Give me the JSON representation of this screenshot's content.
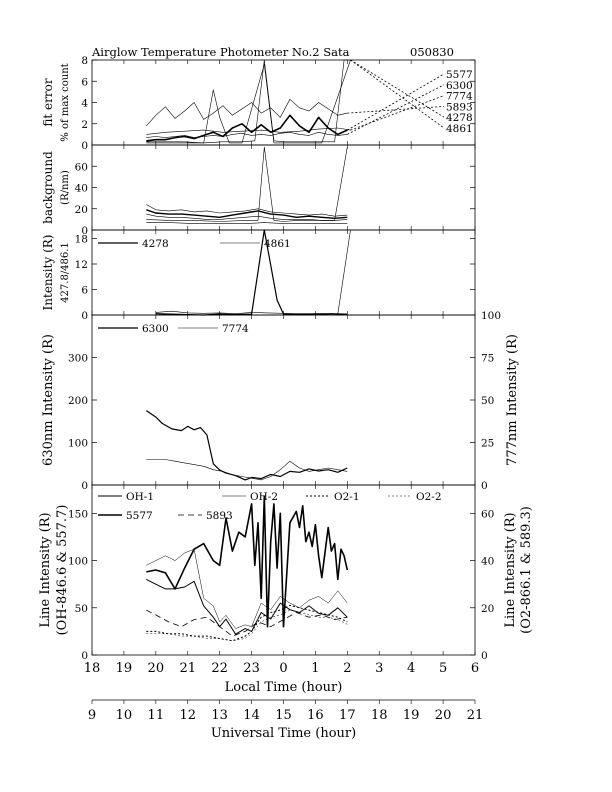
{
  "header": {
    "title": "Airglow Temperature Photometer No.2  Sata",
    "date": "050830"
  },
  "chart_data": [
    {
      "type": "line",
      "panel": "fit-error",
      "ylabel": [
        "fit error",
        "% of max count"
      ],
      "ylim": [
        0,
        8
      ],
      "yticks": [
        0,
        2,
        4,
        6,
        8
      ],
      "legend": [
        "5577",
        "6300",
        "7774",
        "5893",
        "4278",
        "4861"
      ],
      "series": [
        {
          "name": "5893",
          "x": [
            19.7,
            20.0,
            20.3,
            20.6,
            20.9,
            21.2,
            21.5,
            21.8,
            22.1,
            22.4,
            22.7,
            23.0,
            23.3,
            23.6,
            23.9,
            0.2,
            0.5,
            0.8,
            1.1,
            1.4,
            1.7,
            2.0
          ],
          "values": [
            1.8,
            2.8,
            3.6,
            2.5,
            3.2,
            4.0,
            2.4,
            3.0,
            3.7,
            2.8,
            3.4,
            4.0,
            3.0,
            3.5,
            2.6,
            4.3,
            3.5,
            3.2,
            4.0,
            3.4,
            2.8,
            3.0
          ]
        },
        {
          "name": "5577",
          "x": [
            19.7,
            20.0,
            20.3,
            20.6,
            20.9,
            21.2,
            21.5,
            21.8,
            22.1,
            22.4,
            22.7,
            23.0,
            23.3,
            23.6,
            23.9,
            0.2,
            0.5,
            0.8,
            1.1,
            1.4,
            1.7,
            2.0
          ],
          "values": [
            0.4,
            0.5,
            0.5,
            0.7,
            0.8,
            0.6,
            0.9,
            1.2,
            0.8,
            1.6,
            2.0,
            1.2,
            1.9,
            1.2,
            1.6,
            2.8,
            1.8,
            1.2,
            2.6,
            1.6,
            1.0,
            1.4
          ]
        },
        {
          "name": "6300",
          "x": [
            19.7,
            20.0,
            20.3,
            20.6,
            20.9,
            21.2,
            21.5,
            21.8,
            22.1,
            22.4,
            22.7,
            23.0,
            23.3,
            23.6,
            23.9,
            0.2,
            0.5,
            0.8,
            1.1,
            1.4,
            1.7,
            2.0
          ],
          "values": [
            0.7,
            0.8,
            0.7,
            0.8,
            0.9,
            0.7,
            0.8,
            0.9,
            0.8,
            1.0,
            1.1,
            0.9,
            1.0,
            0.9,
            1.1,
            1.2,
            1.0,
            0.9,
            1.2,
            1.0,
            0.9,
            1.0
          ]
        },
        {
          "name": "4278",
          "x": [
            19.7,
            20.3,
            20.9,
            21.5,
            22.1,
            22.7,
            23.1,
            23.4,
            23.7,
            24.0,
            0.6,
            1.2,
            1.6,
            1.9,
            2.1
          ],
          "values": [
            0.3,
            0.3,
            0.3,
            0.2,
            0.3,
            0.3,
            0.4,
            8.0,
            0.4,
            0.3,
            0.3,
            0.3,
            0.3,
            8.0,
            8.0
          ]
        },
        {
          "name": "4861",
          "x": [
            19.7,
            20.3,
            20.9,
            21.5,
            21.8,
            22.0,
            22.3,
            22.7,
            23.4,
            23.7,
            24.0,
            0.6,
            1.2,
            2.1
          ],
          "values": [
            0.2,
            0.2,
            0.2,
            0.2,
            5.2,
            2.6,
            0.2,
            0.2,
            7.6,
            0.2,
            0.2,
            0.2,
            0.2,
            8.0
          ]
        },
        {
          "name": "7774",
          "x": [
            19.7,
            20.3,
            20.9,
            21.5,
            22.1,
            22.7,
            23.3,
            23.9,
            0.5,
            1.1,
            1.7,
            2.1
          ],
          "values": [
            1.0,
            1.2,
            1.3,
            1.4,
            1.2,
            1.3,
            1.4,
            1.2,
            1.3,
            1.5,
            1.6,
            1.4
          ]
        }
      ]
    },
    {
      "type": "line",
      "panel": "background",
      "ylabel": [
        "background",
        "(R/nm)"
      ],
      "ylim": [
        0,
        80
      ],
      "yticks": [
        0,
        20,
        40,
        60
      ],
      "series": [
        {
          "x": [
            19.7,
            20.0,
            20.4,
            20.8,
            21.2,
            21.6,
            22.0,
            22.4,
            22.8,
            23.2,
            23.6,
            24.0,
            0.4,
            0.8,
            1.2,
            1.6,
            2.0
          ],
          "values": [
            24,
            19,
            18,
            19,
            17,
            18,
            16,
            17,
            18,
            20,
            17,
            16,
            15,
            14,
            15,
            13,
            14
          ]
        },
        {
          "x": [
            19.7,
            20.0,
            20.4,
            20.8,
            21.2,
            21.6,
            22.0,
            22.4,
            22.8,
            23.2,
            23.6,
            24.0,
            0.4,
            0.8,
            1.2,
            1.6,
            2.0
          ],
          "values": [
            19,
            16,
            15,
            15,
            14,
            13,
            12,
            14,
            16,
            18,
            15,
            14,
            12,
            13,
            12,
            11,
            12
          ]
        },
        {
          "x": [
            19.7,
            20.0,
            20.4,
            20.8,
            21.2,
            21.6,
            22.0,
            22.4,
            22.8,
            23.2,
            23.6,
            24.0,
            0.4,
            0.8,
            1.2,
            1.6,
            2.0
          ],
          "values": [
            15,
            13,
            12,
            12,
            11,
            10,
            10,
            11,
            12,
            13,
            11,
            10,
            10,
            10,
            9,
            9,
            10
          ]
        },
        {
          "x": [
            19.7,
            20.4,
            21.2,
            22.0,
            22.8,
            23.2,
            23.4,
            23.7,
            24.0,
            0.4,
            0.8,
            1.2,
            1.6,
            2.0
          ],
          "values": [
            10,
            9,
            9,
            8,
            9,
            9,
            78,
            9,
            8,
            9,
            9,
            9,
            9,
            78
          ]
        },
        {
          "x": [
            19.7,
            20.4,
            21.2,
            22.0,
            22.8,
            23.4,
            24.0,
            0.4,
            0.8,
            1.2,
            1.6,
            2.0
          ],
          "values": [
            7,
            7,
            6,
            6,
            6,
            7,
            6,
            6,
            6,
            6,
            6,
            6
          ]
        }
      ]
    },
    {
      "type": "line",
      "panel": "blue-lines",
      "ylabel": [
        "Intensity (R)",
        "427.8/486.1"
      ],
      "ylim": [
        0,
        20
      ],
      "yticks": [
        0,
        6,
        12,
        18
      ],
      "series": [
        {
          "name": "4278",
          "x": [
            20.0,
            20.5,
            21.0,
            21.5,
            22.0,
            22.5,
            23.0,
            23.4,
            23.8,
            24.0,
            0.5,
            1.0,
            1.5,
            1.9,
            2.0
          ],
          "values": [
            0.3,
            0.2,
            0.1,
            -0.3,
            0.2,
            0.1,
            0.2,
            20.0,
            3.5,
            0.2,
            0.1,
            0.1,
            0.3,
            0.2,
            0.2
          ]
        },
        {
          "name": "4861",
          "x": [
            20.0,
            20.5,
            21.0,
            21.5,
            22.0,
            22.5,
            23.0,
            23.5,
            24.0,
            0.5,
            1.0,
            1.5,
            1.7,
            2.1
          ],
          "values": [
            0.6,
            0.9,
            0.5,
            0.4,
            0.5,
            0.3,
            0.6,
            0.5,
            0.4,
            0.3,
            0.4,
            0.3,
            0.2,
            20.0
          ]
        }
      ]
    },
    {
      "type": "line",
      "panel": "red-lines",
      "ylabel": "630nm Intensity (R)",
      "ylim": [
        0,
        400
      ],
      "yticks": [
        0,
        100,
        200,
        300
      ],
      "y2label": "777nm Intensity (R)",
      "y2lim": [
        0,
        100
      ],
      "y2ticks": [
        0,
        25,
        50,
        75,
        100
      ],
      "series": [
        {
          "name": "6300",
          "x": [
            19.7,
            20.0,
            20.2,
            20.5,
            20.8,
            21.0,
            21.2,
            21.4,
            21.6,
            21.8,
            22.0,
            22.2,
            22.5,
            22.8,
            23.0,
            23.3,
            23.6,
            23.9,
            0.2,
            0.5,
            0.8,
            1.1,
            1.4,
            1.7,
            2.0
          ],
          "values": [
            175,
            160,
            145,
            132,
            128,
            138,
            130,
            135,
            118,
            50,
            35,
            28,
            22,
            12,
            18,
            15,
            25,
            20,
            32,
            30,
            38,
            33,
            36,
            30,
            40
          ]
        },
        {
          "name": "7774",
          "x": [
            19.7,
            20.0,
            20.3,
            20.6,
            20.9,
            21.2,
            21.5,
            21.8,
            22.1,
            22.4,
            22.7,
            23.0,
            23.3,
            23.6,
            23.9,
            0.2,
            0.5,
            0.8,
            1.1,
            1.4,
            1.7,
            2.0
          ],
          "values": [
            15,
            15,
            15,
            14,
            13,
            12,
            11,
            9,
            8,
            6,
            5,
            4,
            3,
            5,
            9,
            14,
            10,
            8,
            9,
            10,
            9,
            8
          ]
        }
      ]
    },
    {
      "type": "line",
      "panel": "oh-o2",
      "ylabel": [
        "Line Intensity (R)",
        "(OH-846.6 & 557.7)"
      ],
      "ylim": [
        0,
        180
      ],
      "yticks": [
        0,
        50,
        100,
        150
      ],
      "y2label": [
        "Line Intensity (R)",
        "(O2-866.1 & 589.3)"
      ],
      "y2lim": [
        0,
        72
      ],
      "y2ticks": [
        0,
        20,
        40,
        60
      ],
      "xlabel": "Local Time (hour)",
      "xticks": [
        "18",
        "19",
        "20",
        "21",
        "22",
        "23",
        "0",
        "1",
        "2",
        "3",
        "4",
        "5",
        "6"
      ],
      "x2label": "Universal Time (hour)",
      "x2ticks": [
        "9",
        "10",
        "11",
        "12",
        "13",
        "14",
        "15",
        "16",
        "17",
        "18",
        "19",
        "20",
        "21"
      ],
      "legend": [
        "OH-1",
        "OH-2",
        "O2-1",
        "O2-2",
        "5577",
        "5893"
      ],
      "series": [
        {
          "name": "OH-1",
          "x": [
            19.7,
            20.0,
            20.3,
            20.6,
            20.9,
            21.2,
            21.5,
            21.8,
            22.0,
            22.2,
            22.5,
            22.8,
            23.0,
            23.3,
            23.6,
            23.9,
            0.2,
            0.5,
            0.8,
            1.1,
            1.4,
            1.7,
            2.0
          ],
          "values": [
            80,
            75,
            70,
            70,
            72,
            78,
            52,
            40,
            30,
            38,
            22,
            28,
            25,
            45,
            38,
            55,
            48,
            45,
            52,
            44,
            42,
            50,
            40
          ]
        },
        {
          "name": "OH-2",
          "x": [
            19.7,
            20.0,
            20.3,
            20.6,
            20.9,
            21.2,
            21.5,
            21.8,
            22.0,
            22.2,
            22.5,
            22.8,
            23.0,
            23.3,
            23.6,
            23.9,
            0.2,
            0.5,
            0.8,
            1.1,
            1.4,
            1.7,
            2.0
          ],
          "values": [
            95,
            100,
            105,
            100,
            108,
            112,
            60,
            52,
            35,
            42,
            28,
            32,
            30,
            55,
            48,
            62,
            55,
            50,
            58,
            62,
            55,
            68,
            55
          ]
        },
        {
          "name": "O2-1",
          "x": [
            19.7,
            20.0,
            20.4,
            20.8,
            21.2,
            21.6,
            22.0,
            22.4,
            22.8,
            23.0,
            23.3,
            23.6,
            23.9,
            0.2,
            0.5,
            0.8,
            1.1,
            1.4,
            1.7,
            2.0
          ],
          "values": [
            10,
            10,
            9,
            9,
            8,
            8,
            7,
            6,
            8,
            10,
            16,
            18,
            19,
            21,
            20,
            19,
            18,
            17,
            16,
            14
          ]
        },
        {
          "name": "O2-2",
          "x": [
            19.7,
            20.0,
            20.4,
            20.8,
            21.2,
            21.6,
            22.0,
            22.4,
            22.8,
            23.0,
            23.3,
            23.6,
            23.9,
            0.2,
            0.5,
            0.8,
            1.1,
            1.4,
            1.7,
            2.0
          ],
          "values": [
            9,
            9,
            9,
            8,
            8,
            7,
            7,
            6,
            7,
            9,
            14,
            16,
            17,
            19,
            18,
            17,
            16,
            16,
            15,
            13
          ]
        },
        {
          "name": "5577",
          "x": [
            19.7,
            20.0,
            20.3,
            20.6,
            20.9,
            21.2,
            21.5,
            21.8,
            22.0,
            22.2,
            22.4,
            22.6,
            22.8,
            23.0,
            23.1,
            23.2,
            23.3,
            23.4,
            23.5,
            23.6,
            23.7,
            23.8,
            23.9,
            24.0,
            0.2,
            0.4,
            0.5,
            0.6,
            0.7,
            0.8,
            0.9,
            1.0,
            1.1,
            1.2,
            1.4,
            1.5,
            1.6,
            1.7,
            1.8,
            1.9,
            2.0
          ],
          "values": [
            88,
            90,
            87,
            70,
            92,
            112,
            118,
            100,
            95,
            145,
            110,
            130,
            125,
            160,
            95,
            140,
            60,
            168,
            30,
            120,
            160,
            92,
            150,
            30,
            140,
            152,
            135,
            158,
            120,
            130,
            115,
            138,
            105,
            82,
            135,
            110,
            118,
            80,
            112,
            105,
            90
          ]
        },
        {
          "name": "5893",
          "x": [
            19.7,
            20.0,
            20.4,
            20.8,
            21.2,
            21.6,
            22.0,
            22.4,
            22.8,
            23.2,
            23.6,
            24.0,
            0.4,
            0.8,
            1.2,
            1.6,
            2.0
          ],
          "values": [
            19,
            17,
            14,
            12,
            15,
            16,
            12,
            8,
            10,
            14,
            12,
            15,
            18,
            16,
            17,
            15,
            16
          ]
        }
      ]
    }
  ]
}
